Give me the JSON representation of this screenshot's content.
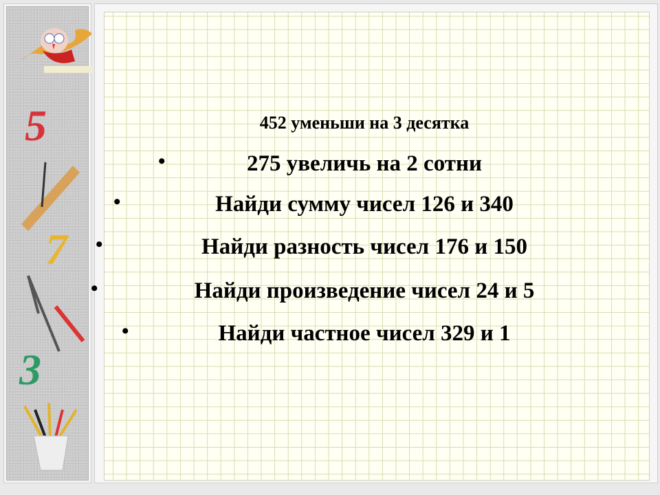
{
  "slide": {
    "lines": [
      "452 уменьши на 3 десятка",
      "275 увеличь на 2 сотни",
      "Найди сумму чисел 126 и 340",
      "Найди разность чисел 176 и 150",
      "Найди произведение чисел 24 и 5",
      "Найди частное чисел 329 и 1"
    ],
    "bullet": "•"
  },
  "sidebar": {
    "digits": [
      "5",
      "7",
      "3"
    ],
    "digit_colors": [
      "#d8333a",
      "#e8b530",
      "#2e9a66"
    ]
  }
}
